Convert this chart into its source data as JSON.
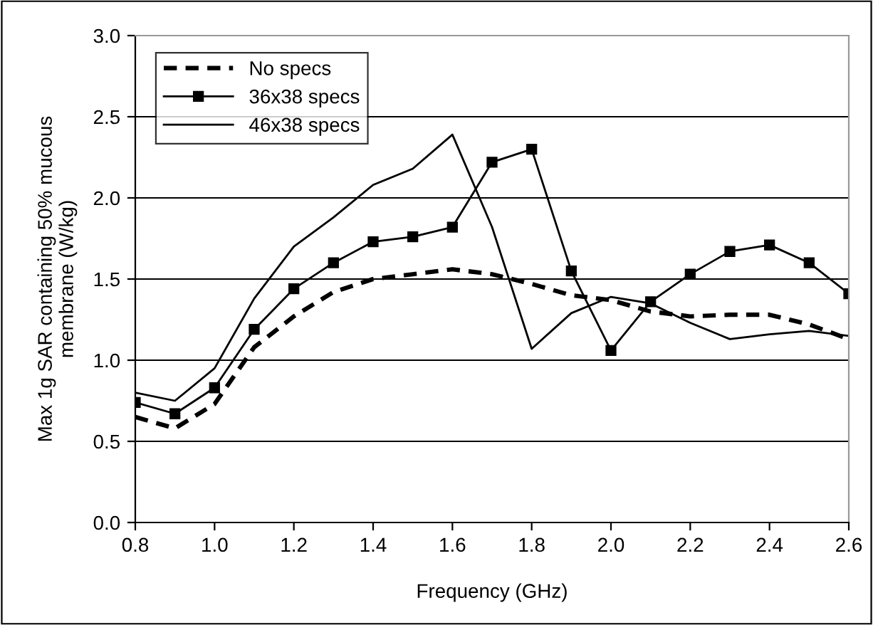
{
  "chart_data": {
    "type": "line",
    "xlabel": "Frequency (GHz)",
    "ylabel": "Max 1g SAR containing 50% mucous\nmembrane (W/kg)",
    "x": [
      0.8,
      0.9,
      1.0,
      1.1,
      1.2,
      1.3,
      1.4,
      1.5,
      1.6,
      1.7,
      1.8,
      1.9,
      2.0,
      2.1,
      2.2,
      2.3,
      2.4,
      2.5,
      2.6
    ],
    "series": [
      {
        "name": "No specs",
        "color": "#000000",
        "line_style": "dashed",
        "marker": "none",
        "values": [
          0.65,
          0.58,
          0.73,
          1.08,
          1.27,
          1.42,
          1.5,
          1.53,
          1.56,
          1.53,
          1.47,
          1.4,
          1.37,
          1.3,
          1.27,
          1.28,
          1.28,
          1.22,
          1.13
        ]
      },
      {
        "name": "36x38 specs",
        "color": "#000000",
        "line_style": "solid",
        "marker": "square",
        "values": [
          0.74,
          0.67,
          0.83,
          1.19,
          1.44,
          1.6,
          1.73,
          1.76,
          1.82,
          2.22,
          2.3,
          1.55,
          1.06,
          1.36,
          1.53,
          1.67,
          1.71,
          1.6,
          1.41
        ]
      },
      {
        "name": "46x38 specs",
        "color": "#000000",
        "line_style": "solid",
        "marker": "none",
        "values": [
          0.8,
          0.75,
          0.95,
          1.38,
          1.7,
          1.88,
          2.08,
          2.18,
          2.39,
          1.82,
          1.07,
          1.29,
          1.39,
          1.35,
          1.23,
          1.13,
          1.16,
          1.18,
          1.15
        ]
      }
    ],
    "xlim": [
      0.8,
      2.6
    ],
    "xticks": [
      {
        "value": 0.8,
        "label": "0.8"
      },
      {
        "value": 1.0,
        "label": "1.0"
      },
      {
        "value": 1.2,
        "label": "1.2"
      },
      {
        "value": 1.4,
        "label": "1.4"
      },
      {
        "value": 1.6,
        "label": "1.6"
      },
      {
        "value": 1.8,
        "label": "1.8"
      },
      {
        "value": 2.0,
        "label": "2.0"
      },
      {
        "value": 2.2,
        "label": "2.2"
      },
      {
        "value": 2.4,
        "label": "2.4"
      },
      {
        "value": 2.6,
        "label": "2.6"
      }
    ],
    "ylim": [
      0,
      3.0
    ],
    "yticks": [
      {
        "value": 0,
        "label": "0.0"
      },
      {
        "value": 0.5,
        "label": "0.5"
      },
      {
        "value": 1.0,
        "label": "1.0"
      },
      {
        "value": 1.5,
        "label": "1.5"
      },
      {
        "value": 2.0,
        "label": "2.0"
      },
      {
        "value": 2.5,
        "label": "2.5"
      },
      {
        "value": 3.0,
        "label": "3.0"
      }
    ],
    "grid": "y",
    "legend": "top left"
  }
}
